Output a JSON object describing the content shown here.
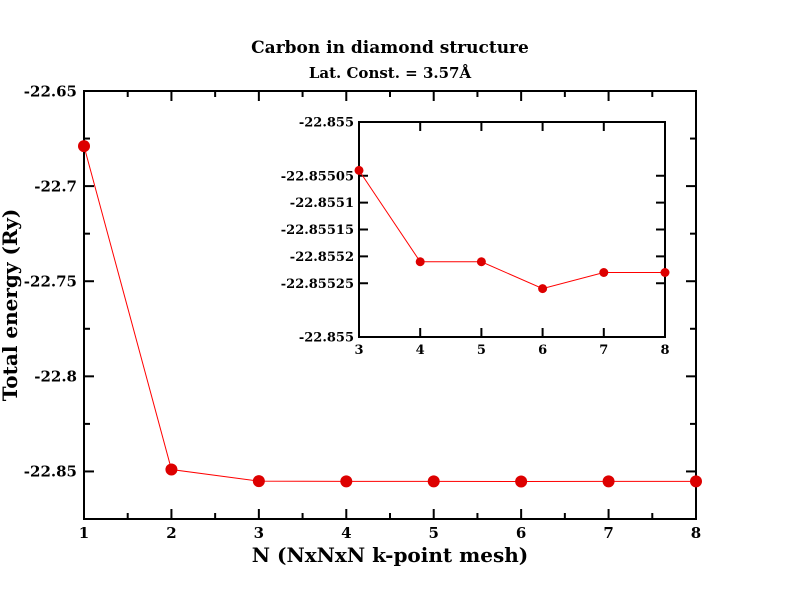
{
  "chart_data": [
    {
      "type": "line",
      "title": "Carbon in diamond structure",
      "subtitle": "Lat. Const. = 3.57Å",
      "xlabel": "N (NxNxN k-point mesh)",
      "ylabel": "Total energy (Ry)",
      "xlim": [
        1,
        8
      ],
      "ylim": [
        -22.875,
        -22.65
      ],
      "x_ticks": [
        1,
        2,
        3,
        4,
        5,
        6,
        7,
        8
      ],
      "x_tick_labels": [
        "1",
        "2",
        "3",
        "4",
        "5",
        "6",
        "7",
        "8"
      ],
      "y_ticks": [
        -22.65,
        -22.7,
        -22.75,
        -22.8,
        -22.85
      ],
      "y_tick_labels": [
        "-22.65",
        "-22.7",
        "-22.75",
        "-22.8",
        "-22.85"
      ],
      "grid": false,
      "series": [
        {
          "x": [
            1,
            2,
            3,
            4,
            5,
            6,
            7,
            8
          ],
          "y": [
            -22.679,
            -22.849,
            -22.8551,
            -22.85522,
            -22.85523,
            -22.85526,
            -22.85524,
            -22.85524
          ],
          "color": "#ff0000",
          "marker_color": "#dd0000"
        }
      ]
    },
    {
      "type": "line",
      "xlim": [
        3,
        8
      ],
      "ylim": [
        -22.85535,
        -22.85495
      ],
      "x_ticks": [
        3,
        4,
        5,
        6,
        7,
        8
      ],
      "x_tick_labels": [
        "3",
        "4",
        "5",
        "6",
        "7",
        "8"
      ],
      "y_ticks": [
        -22.85495,
        -22.85505,
        -22.8551,
        -22.85515,
        -22.8552,
        -22.85525,
        -22.85535
      ],
      "y_tick_labels": [
        "-22.855",
        "-22.85505",
        "-22.8551",
        "-22.85515",
        "-22.8552",
        "-22.85525",
        "-22.855"
      ],
      "grid": false,
      "series": [
        {
          "x": [
            3,
            4,
            5,
            6,
            7,
            8
          ],
          "y": [
            -22.85504,
            -22.85521,
            -22.85521,
            -22.85526,
            -22.85523,
            -22.85523
          ],
          "color": "#ff0000",
          "marker_color": "#dd0000"
        }
      ]
    }
  ]
}
